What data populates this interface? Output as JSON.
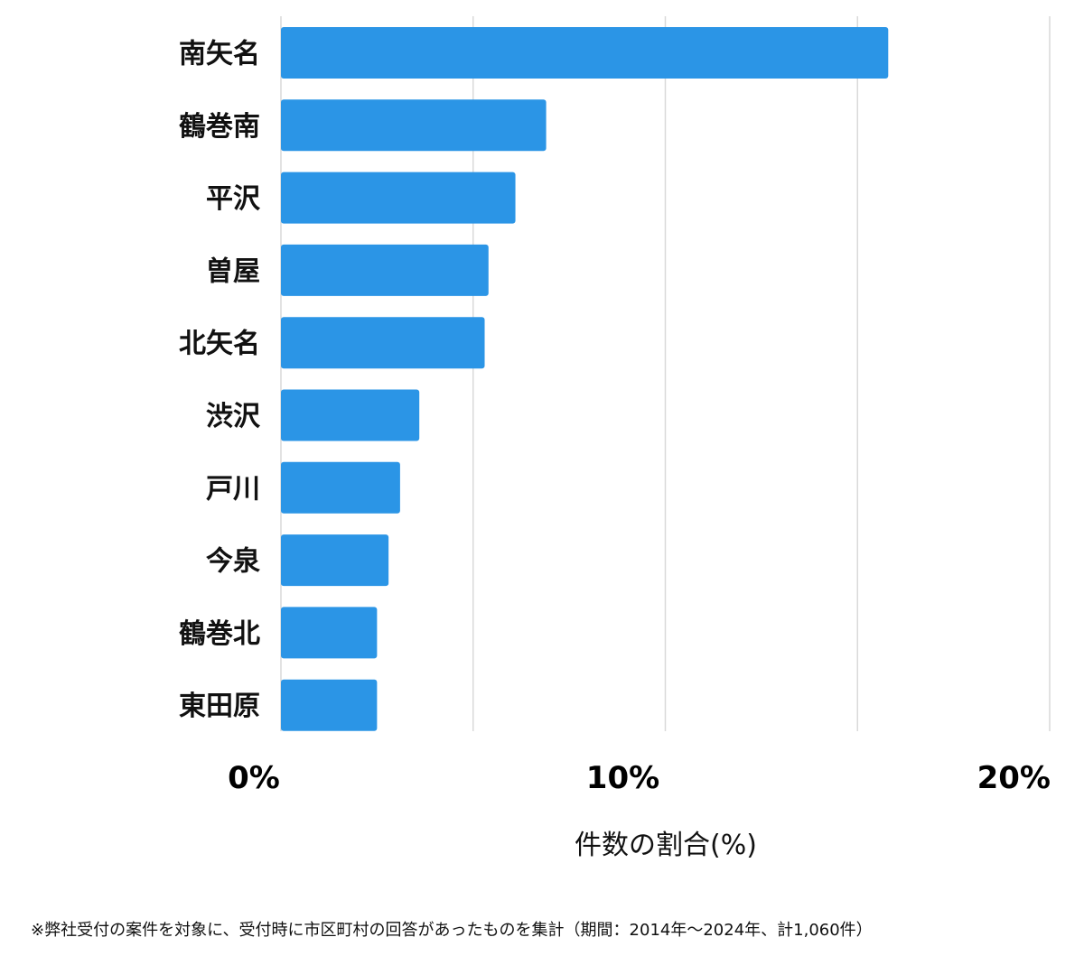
{
  "chart_data": {
    "type": "bar",
    "orientation": "horizontal",
    "categories": [
      "南矢名",
      "鶴巻南",
      "平沢",
      "曽屋",
      "北矢名",
      "渋沢",
      "戸川",
      "今泉",
      "鶴巻北",
      "東田原"
    ],
    "values": [
      15.8,
      6.9,
      6.1,
      5.4,
      5.3,
      3.6,
      3.1,
      2.8,
      2.5,
      2.5
    ],
    "xlim": [
      0,
      20
    ],
    "gridlines": [
      0,
      5,
      10,
      15,
      20
    ],
    "tick_labels": [
      {
        "value": 0,
        "label": "0%"
      },
      {
        "value": 10,
        "label": "10%"
      },
      {
        "value": 20,
        "label": "20%"
      }
    ],
    "xlabel": "件数の割合(%)",
    "ylabel": "",
    "bar_color": "#2b95e6",
    "grid_color": "#d9d9d9",
    "grid": true
  },
  "footnote": "※弊社受付の案件を対象に、受付時に市区町村の回答があったものを集計（期間：2014年～2024年、計1,060件）"
}
